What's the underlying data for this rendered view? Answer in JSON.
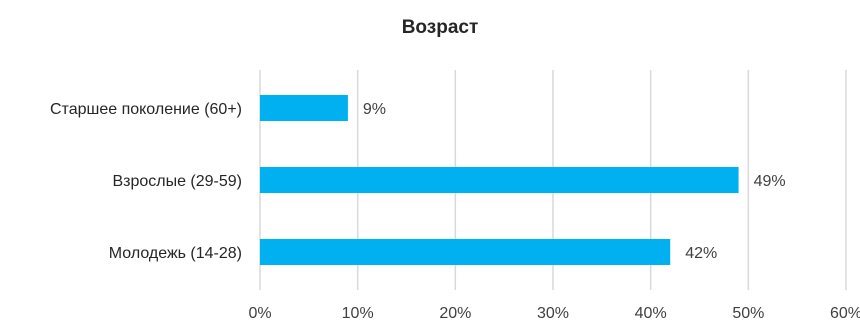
{
  "chart_data": {
    "type": "bar",
    "orientation": "horizontal",
    "title": "Возраст",
    "xlabel": "",
    "ylabel": "",
    "categories": [
      "Старшее поколение (60+)",
      "Взрослые (29-59)",
      "Молодежь (14-28)"
    ],
    "values": [
      9,
      49,
      42
    ],
    "data_labels": [
      "9%",
      "49%",
      "42%"
    ],
    "xlim": [
      0,
      60
    ],
    "x_ticks": [
      "0%",
      "10%",
      "20%",
      "30%",
      "40%",
      "50%",
      "60%"
    ],
    "grid": "vertical",
    "legend": "none",
    "bar_color": "#00B0F0",
    "gridline_color": "#D9D9D9"
  }
}
